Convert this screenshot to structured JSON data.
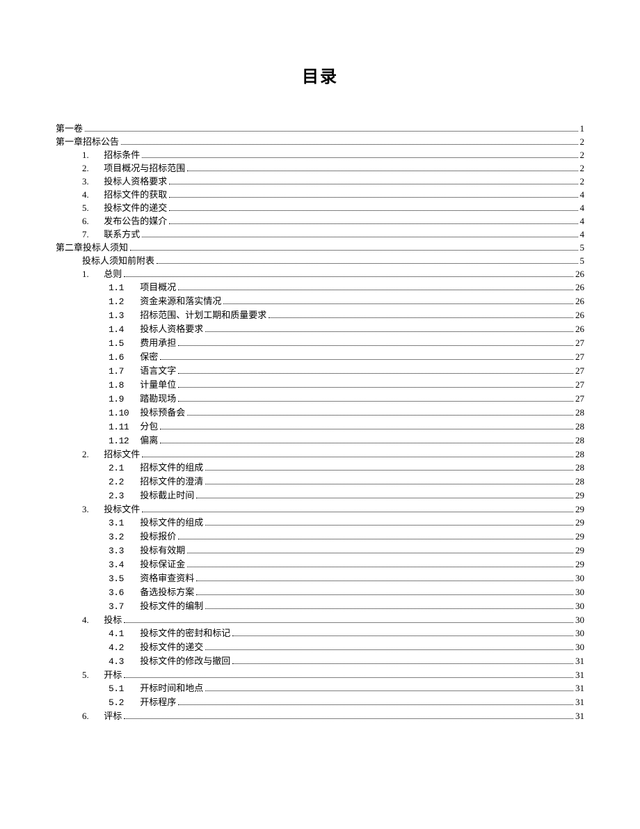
{
  "title": "目录",
  "entries": [
    {
      "level": 0,
      "num": "",
      "text": "第一卷",
      "page": "1"
    },
    {
      "level": 0,
      "num": "",
      "text": "第一章招标公告",
      "page": "2"
    },
    {
      "level": 1,
      "num": "1.",
      "text": "招标条件",
      "page": "2"
    },
    {
      "level": 1,
      "num": "2.",
      "text": "项目概况与招标范围",
      "page": "2"
    },
    {
      "level": 1,
      "num": "3.",
      "text": "投标人资格要求",
      "page": "2"
    },
    {
      "level": 1,
      "num": "4.",
      "text": "招标文件的获取",
      "page": "4"
    },
    {
      "level": 1,
      "num": "5.",
      "text": "投标文件的递交",
      "page": "4"
    },
    {
      "level": 1,
      "num": "6.",
      "text": "发布公告的媒介",
      "page": "4"
    },
    {
      "level": 1,
      "num": "7.",
      "text": "联系方式",
      "page": "4"
    },
    {
      "level": 0,
      "num": "",
      "text": "第二章投标人须知",
      "page": "5"
    },
    {
      "level": 2,
      "num": "",
      "text": "投标人须知前附表",
      "page": "5"
    },
    {
      "level": 2,
      "num": "1.",
      "text": "总则",
      "page": "26"
    },
    {
      "level": 3,
      "num": "1.1",
      "text": "项目概况",
      "page": "26"
    },
    {
      "level": 3,
      "num": "1.2",
      "text": "资金来源和落实情况",
      "page": "26"
    },
    {
      "level": 3,
      "num": "1.3",
      "text": "招标范围、计划工期和质量要求",
      "page": "26"
    },
    {
      "level": 3,
      "num": "1.4",
      "text": "投标人资格要求",
      "page": "26"
    },
    {
      "level": 3,
      "num": "1.5",
      "text": "费用承担",
      "page": "27"
    },
    {
      "level": 3,
      "num": "1.6",
      "text": "保密",
      "page": "27"
    },
    {
      "level": 3,
      "num": "1.7",
      "text": "语言文字",
      "page": "27"
    },
    {
      "level": 3,
      "num": "1.8",
      "text": "计量单位",
      "page": "27"
    },
    {
      "level": 3,
      "num": "1.9",
      "text": "踏勘现场",
      "page": "27"
    },
    {
      "level": 3,
      "num": "1.10",
      "text": "投标预备会",
      "page": "28"
    },
    {
      "level": 3,
      "num": "1.11",
      "text": "分包",
      "page": "28"
    },
    {
      "level": 3,
      "num": "1.12",
      "text": "偏离",
      "page": "28"
    },
    {
      "level": 2,
      "num": "2.",
      "text": "招标文件",
      "page": "28"
    },
    {
      "level": 3,
      "num": "2.1",
      "text": "招标文件的组成",
      "page": "28"
    },
    {
      "level": 3,
      "num": "2.2",
      "text": "招标文件的澄清",
      "page": "28"
    },
    {
      "level": 3,
      "num": "2.3",
      "text": "投标截止时间",
      "page": "29"
    },
    {
      "level": 2,
      "num": "3.",
      "text": "投标文件",
      "page": "29"
    },
    {
      "level": 3,
      "num": "3.1",
      "text": "投标文件的组成",
      "page": "29"
    },
    {
      "level": 3,
      "num": "3.2",
      "text": "投标报价",
      "page": "29"
    },
    {
      "level": 3,
      "num": "3.3",
      "text": "投标有效期",
      "page": "29"
    },
    {
      "level": 3,
      "num": "3.4",
      "text": "投标保证金",
      "page": "29"
    },
    {
      "level": 3,
      "num": "3.5",
      "text": "资格审查资料",
      "page": "30"
    },
    {
      "level": 3,
      "num": "3.6",
      "text": "备选投标方案",
      "page": "30"
    },
    {
      "level": 3,
      "num": "3.7",
      "text": "投标文件的编制",
      "page": "30"
    },
    {
      "level": 2,
      "num": "4.",
      "text": "投标",
      "page": "30"
    },
    {
      "level": 3,
      "num": "4.1",
      "text": "投标文件的密封和标记",
      "page": "30"
    },
    {
      "level": 3,
      "num": "4.2",
      "text": "投标文件的递交",
      "page": "30"
    },
    {
      "level": 3,
      "num": "4.3",
      "text": "投标文件的修改与撤回",
      "page": "31"
    },
    {
      "level": 2,
      "num": "5.",
      "text": "开标",
      "page": "31"
    },
    {
      "level": 3,
      "num": "5.1",
      "text": "开标时间和地点",
      "page": "31"
    },
    {
      "level": 3,
      "num": "5.2",
      "text": "开标程序",
      "page": "31"
    },
    {
      "level": 2,
      "num": "6.",
      "text": "评标",
      "page": "31"
    }
  ]
}
